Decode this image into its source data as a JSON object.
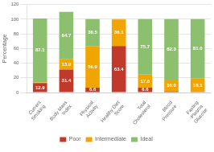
{
  "chart_data": {
    "type": "bar",
    "stacked": true,
    "categories": [
      "Current\nSmoking",
      "Body Mass\nIndex",
      "Physical\nActivity",
      "Healthy Diet\nScore",
      "Total\nCholesterol",
      "Blood\nPressure",
      "Fasting\nPlasma\nGlucose"
    ],
    "series": [
      {
        "name": "Poor",
        "color": "#c0392b",
        "values": [
          12.9,
          31.4,
          6.6,
          63.4,
          6.6,
          1.7,
          0.9
        ],
        "value_labels": [
          "12.9",
          "31.4",
          "6.6",
          "63.4",
          "6.6",
          null,
          null
        ]
      },
      {
        "name": "Intermediate",
        "color": "#f0a500",
        "values": [
          0.9,
          13.9,
          56.9,
          36.1,
          17.8,
          16.0,
          18.1
        ],
        "value_labels": [
          null,
          "13.9",
          "56.9",
          "36.1",
          "17.8",
          "16.0",
          "18.1"
        ]
      },
      {
        "name": "Ideal",
        "color": "#8dc06e",
        "values": [
          87.1,
          64.7,
          36.5,
          0.5,
          75.7,
          82.3,
          81.0
        ],
        "value_labels": [
          "87.1",
          "64.7",
          "36.5",
          null,
          "75.7",
          "82.3",
          "81.0"
        ]
      }
    ],
    "ylabel": "Percentage",
    "ylim": [
      0,
      120
    ],
    "yticks": [
      0,
      20,
      40,
      60,
      80,
      100,
      120
    ],
    "grid": true,
    "legend": "bottom",
    "data_labels": true
  }
}
